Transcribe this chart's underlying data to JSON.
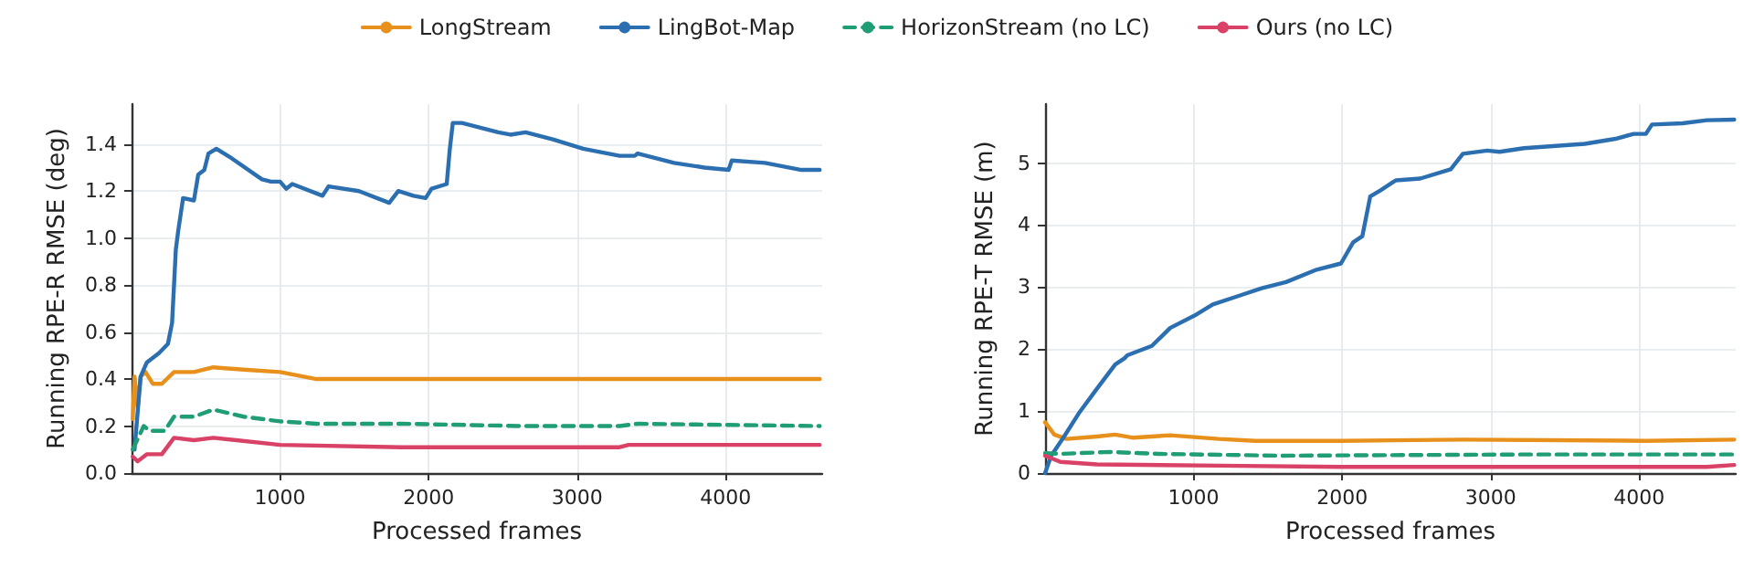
{
  "chart_data": [
    {
      "type": "line",
      "xlabel": "Processed frames",
      "ylabel": "Running RPE-R RMSE (deg)",
      "xlim": [
        0,
        4650
      ],
      "ylim": [
        0,
        1.57
      ],
      "xticks": [
        1000,
        2000,
        3000,
        4000
      ],
      "yticks": [
        {
          "value": 0,
          "label": "0.0"
        },
        {
          "value": 0.2,
          "label": "0.2"
        },
        {
          "value": 0.4,
          "label": "0.4"
        },
        {
          "value": 0.6,
          "label": "0.6"
        },
        {
          "value": 0.8,
          "label": "0.8"
        },
        {
          "value": 1,
          "label": "1.0"
        },
        {
          "value": 1.2,
          "label": "1.2"
        },
        {
          "value": 1.4,
          "label": "1.4"
        }
      ],
      "grid": true,
      "legend": "top",
      "marker": "none",
      "series": [
        {
          "name": "LongStream",
          "color": "#e8901c",
          "line_style": "solid",
          "x": [
            8,
            20,
            41,
            61,
            94,
            143,
            204,
            286,
            420,
            551,
            755,
            1000,
            1245,
            1653,
            1816,
            2633,
            3449,
            4633
          ],
          "values": [
            0.23,
            0.41,
            0.28,
            0.41,
            0.43,
            0.38,
            0.38,
            0.43,
            0.43,
            0.45,
            0.44,
            0.43,
            0.4,
            0.4,
            0.4,
            0.4,
            0.4,
            0.4
          ]
        },
        {
          "name": "LingBot-Map",
          "color": "#2c6fb0",
          "line_style": "solid",
          "x": [
            20,
            61,
            102,
            184,
            245,
            273,
            298,
            314,
            347,
            420,
            449,
            490,
            518,
            571,
            673,
            878,
            939,
            1000,
            1041,
            1082,
            1286,
            1327,
            1531,
            1735,
            1796,
            1898,
            1980,
            2020,
            2122,
            2143,
            2163,
            2224,
            2469,
            2551,
            2653,
            2837,
            3041,
            3286,
            3388,
            3408,
            3653,
            3857,
            4020,
            4041,
            4265,
            4510,
            4633
          ],
          "values": [
            0.1,
            0.41,
            0.47,
            0.51,
            0.55,
            0.64,
            0.95,
            1.03,
            1.17,
            1.16,
            1.27,
            1.29,
            1.36,
            1.38,
            1.34,
            1.25,
            1.24,
            1.24,
            1.21,
            1.23,
            1.18,
            1.22,
            1.2,
            1.15,
            1.2,
            1.18,
            1.17,
            1.21,
            1.23,
            1.38,
            1.49,
            1.49,
            1.45,
            1.44,
            1.45,
            1.42,
            1.38,
            1.35,
            1.35,
            1.36,
            1.32,
            1.3,
            1.29,
            1.33,
            1.32,
            1.29,
            1.29
          ]
        },
        {
          "name": "HorizonStream (no LC)",
          "color": "#1f9e75",
          "line_style": "dashed",
          "x": [
            8,
            82,
            122,
            224,
            286,
            420,
            551,
            755,
            1000,
            1245,
            1816,
            2633,
            3286,
            3408,
            4633
          ],
          "values": [
            0.1,
            0.2,
            0.18,
            0.18,
            0.24,
            0.24,
            0.27,
            0.24,
            0.22,
            0.21,
            0.21,
            0.2,
            0.2,
            0.21,
            0.2
          ]
        },
        {
          "name": "Ours (no LC)",
          "color": "#d94167",
          "line_style": "solid",
          "x": [
            8,
            41,
            102,
            204,
            286,
            420,
            551,
            1000,
            1816,
            3286,
            3347,
            4633
          ],
          "values": [
            0.07,
            0.05,
            0.08,
            0.08,
            0.15,
            0.14,
            0.15,
            0.12,
            0.11,
            0.11,
            0.12,
            0.12
          ]
        }
      ]
    },
    {
      "type": "line",
      "xlabel": "Processed frames",
      "ylabel": "Running RPE-T RMSE (m)",
      "xlim": [
        0,
        4650
      ],
      "ylim": [
        0,
        5.95
      ],
      "xticks": [
        1000,
        2000,
        3000,
        4000
      ],
      "yticks": [
        0,
        1,
        2,
        3,
        4,
        5
      ],
      "grid": true,
      "legend": false,
      "marker": "none",
      "series": [
        {
          "color": "#e8901c",
          "line_style": "solid",
          "x": [
            0,
            62,
            144,
            349,
            472,
            595,
            842,
            1170,
            1417,
            1992,
            2813,
            4045,
            4640
          ],
          "values": [
            0.82,
            0.62,
            0.55,
            0.59,
            0.62,
            0.57,
            0.61,
            0.55,
            0.52,
            0.52,
            0.54,
            0.52,
            0.54
          ]
        },
        {
          "color": "#2c6fb0",
          "line_style": "solid",
          "x": [
            0,
            41,
            123,
            226,
            349,
            472,
            534,
            554,
            719,
            842,
            1006,
            1129,
            1294,
            1458,
            1622,
            1828,
            1992,
            2074,
            2136,
            2189,
            2259,
            2361,
            2526,
            2731,
            2813,
            2977,
            3060,
            3224,
            3634,
            3840,
            3963,
            4045,
            4086,
            4292,
            4456,
            4640
          ],
          "values": [
            0,
            0.28,
            0.57,
            0.96,
            1.36,
            1.75,
            1.85,
            1.9,
            2.05,
            2.34,
            2.54,
            2.72,
            2.85,
            2.98,
            3.08,
            3.28,
            3.38,
            3.72,
            3.82,
            4.46,
            4.56,
            4.72,
            4.75,
            4.9,
            5.15,
            5.2,
            5.18,
            5.24,
            5.31,
            5.39,
            5.47,
            5.47,
            5.62,
            5.64,
            5.69,
            5.7
          ]
        },
        {
          "color": "#1f9e75",
          "line_style": "dashed",
          "x": [
            0,
            103,
            431,
            760,
            1581,
            3224,
            4640
          ],
          "values": [
            0.32,
            0.31,
            0.34,
            0.31,
            0.28,
            0.3,
            0.3
          ]
        },
        {
          "color": "#d94167",
          "line_style": "solid",
          "x": [
            0,
            103,
            349,
            1170,
            1992,
            3224,
            4456,
            4640
          ],
          "values": [
            0.28,
            0.18,
            0.14,
            0.12,
            0.1,
            0.1,
            0.1,
            0.13
          ]
        }
      ]
    }
  ]
}
